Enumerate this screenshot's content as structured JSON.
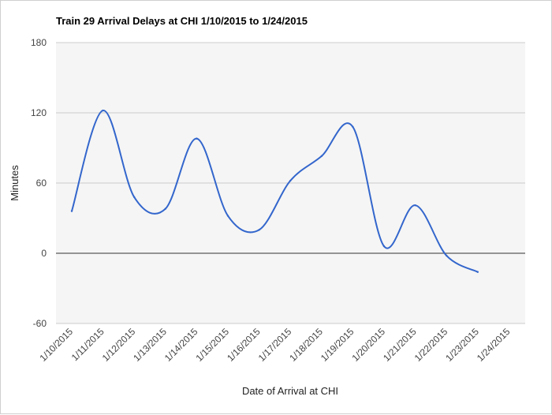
{
  "chart_data": {
    "type": "line",
    "title": "Train 29 Arrival Delays at CHI 1/10/2015 to 1/24/2015",
    "xlabel": "Date of Arrival at CHI",
    "ylabel": "Minutes",
    "ylim": [
      -60,
      180
    ],
    "y_ticks": [
      "180",
      "120",
      "60",
      "0",
      "-60"
    ],
    "categories": [
      "1/10/2015",
      "1/11/2015",
      "1/12/2015",
      "1/13/2015",
      "1/14/2015",
      "1/15/2015",
      "1/16/2015",
      "1/17/2015",
      "1/18/2015",
      "1/19/2015",
      "1/20/2015",
      "1/21/2015",
      "1/22/2015",
      "1/23/2015",
      "1/24/2015"
    ],
    "series": [
      {
        "values": [
          36,
          122,
          48,
          38,
          98,
          32,
          20,
          62,
          83,
          108,
          6,
          41,
          -2,
          -16,
          null
        ]
      }
    ],
    "grid": true,
    "legend": "none",
    "colors": {
      "line": "#3366cc",
      "plot_bg": "#f5f5f5",
      "grid": "#cccccc",
      "zero_line": "#333333"
    }
  }
}
